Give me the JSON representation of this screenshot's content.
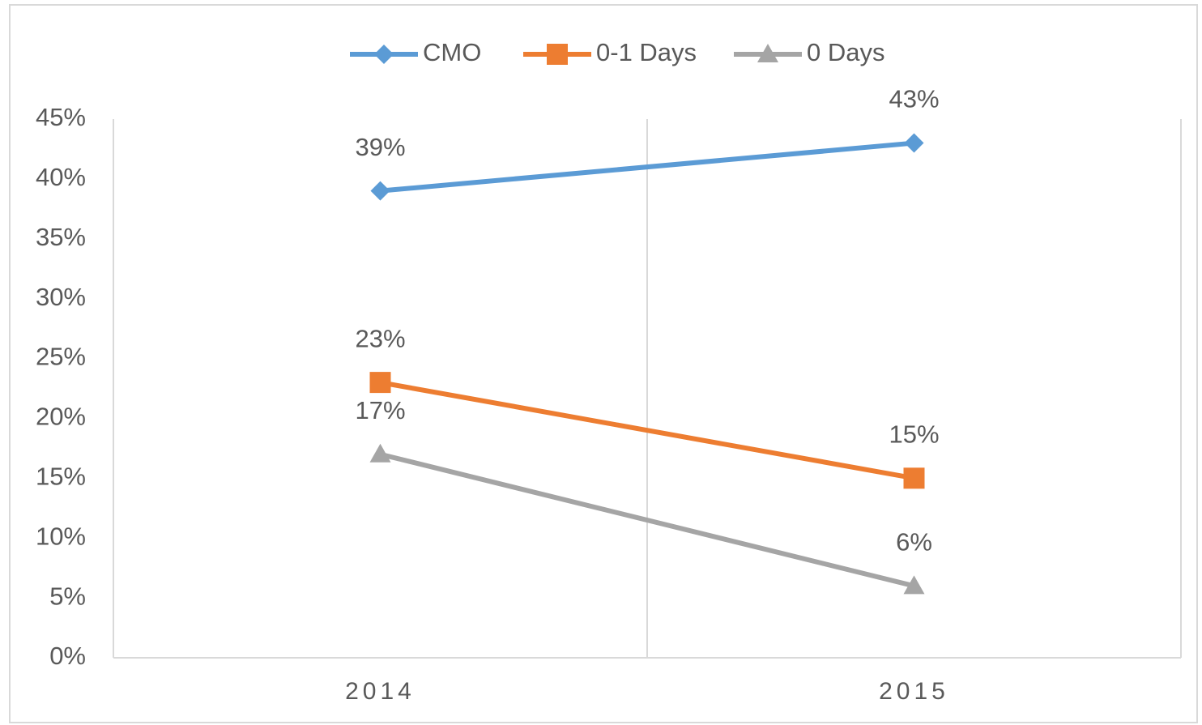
{
  "chart_data": {
    "type": "line",
    "categories": [
      "2014",
      "2015"
    ],
    "series": [
      {
        "name": "CMO",
        "color": "#5b9bd5",
        "marker": "diamond",
        "values": [
          39,
          43
        ],
        "value_labels": [
          "39%",
          "43%"
        ]
      },
      {
        "name": "0-1 Days",
        "color": "#ed7d31",
        "marker": "square",
        "values": [
          23,
          15
        ],
        "value_labels": [
          "23%",
          "15%"
        ]
      },
      {
        "name": "0 Days",
        "color": "#a5a5a5",
        "marker": "triangle",
        "values": [
          17,
          6
        ],
        "value_labels": [
          "17%",
          "6%"
        ]
      }
    ],
    "ylim": [
      0,
      45
    ],
    "yticks": [
      {
        "value": 0,
        "label": "0%"
      },
      {
        "value": 5,
        "label": "5%"
      },
      {
        "value": 10,
        "label": "10%"
      },
      {
        "value": 15,
        "label": "15%"
      },
      {
        "value": 20,
        "label": "20%"
      },
      {
        "value": 25,
        "label": "25%"
      },
      {
        "value": 30,
        "label": "30%"
      },
      {
        "value": 35,
        "label": "35%"
      },
      {
        "value": 40,
        "label": "40%"
      },
      {
        "value": 45,
        "label": "45%"
      }
    ],
    "legend": "top"
  }
}
